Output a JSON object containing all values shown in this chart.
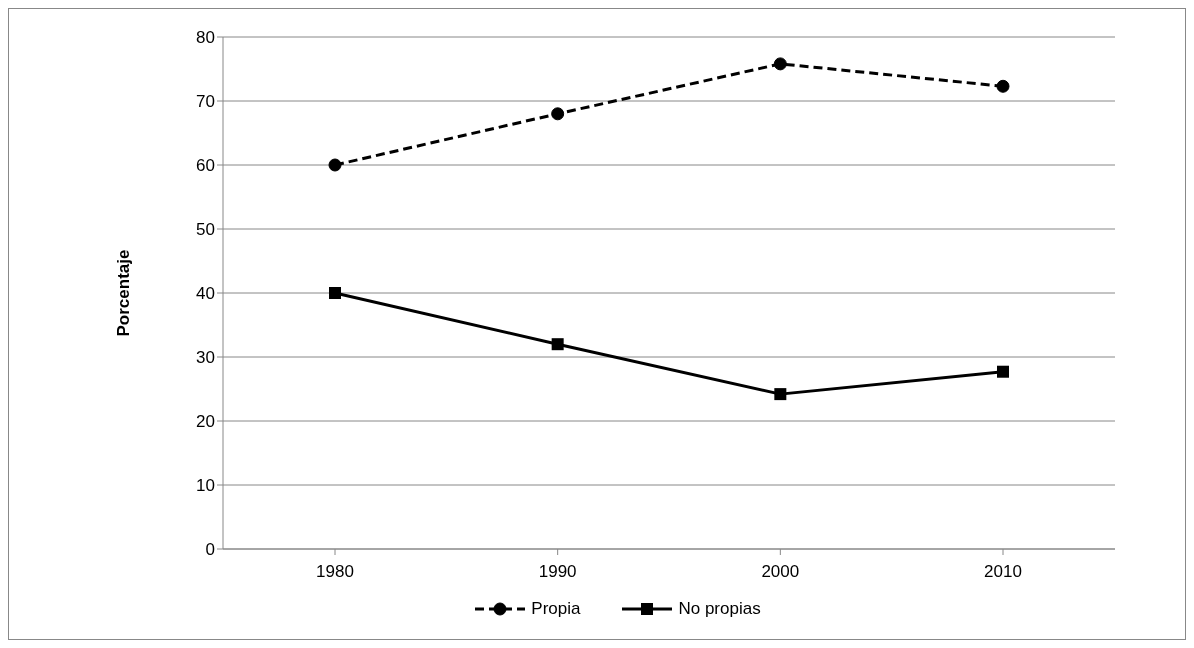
{
  "chart_data": {
    "type": "line",
    "ylabel": "Porcentaje",
    "categories": [
      "1980",
      "1990",
      "2000",
      "2010"
    ],
    "series": [
      {
        "name": "Propia",
        "color": "#000000",
        "values": [
          60,
          68,
          75.8,
          72.3
        ],
        "line_style": "dashed",
        "marker": "circle"
      },
      {
        "name": "No propias",
        "color": "#000000",
        "values": [
          40,
          32,
          24.2,
          27.7
        ],
        "line_style": "solid",
        "marker": "square"
      }
    ],
    "ylim": [
      0,
      80
    ],
    "yticks": [
      0,
      10,
      20,
      30,
      40,
      50,
      60,
      70,
      80
    ],
    "grid": "y",
    "legend": "bottom"
  }
}
